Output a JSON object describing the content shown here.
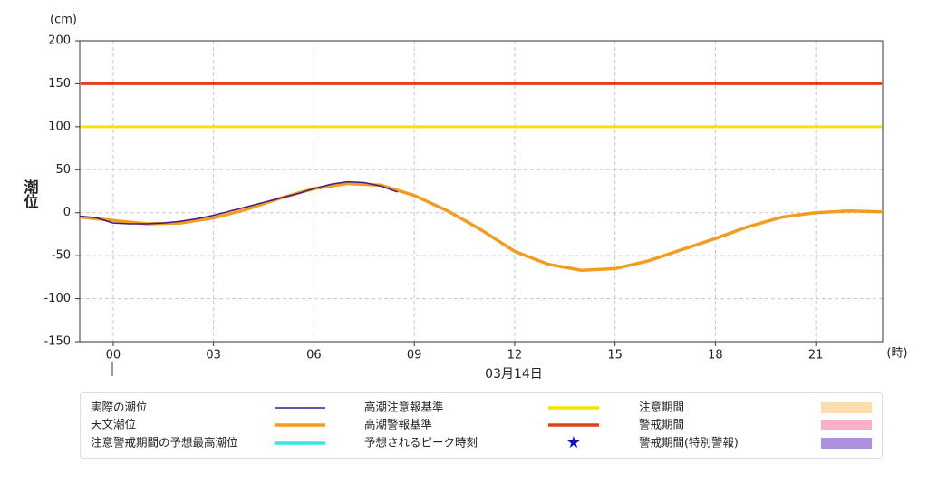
{
  "chart_data": {
    "type": "line",
    "y_unit": "(cm)",
    "ylabel": "潮位",
    "x_unit": "(時)",
    "date_label": "03月14日",
    "xlim": [
      -1,
      23
    ],
    "xticks": [
      {
        "value": 0,
        "label": "00"
      },
      {
        "value": 3,
        "label": "03"
      },
      {
        "value": 6,
        "label": "06"
      },
      {
        "value": 9,
        "label": "09"
      },
      12,
      15,
      18,
      21
    ],
    "ylim": [
      -150,
      200
    ],
    "yticks": [
      -150,
      -100,
      -50,
      0,
      50,
      100,
      150,
      200
    ],
    "grid": true,
    "series": [
      {
        "name": "実際の潮位",
        "color": "#3c1a8c",
        "x": [
          -1,
          -0.5,
          0,
          0.5,
          1,
          1.5,
          2,
          2.5,
          3,
          3.5,
          4,
          4.5,
          5,
          5.5,
          6,
          6.5,
          7,
          7.5,
          8,
          8.5
        ],
        "values": [
          -4,
          -6,
          -12,
          -13,
          -13,
          -12,
          -10,
          -7,
          -3,
          2,
          7,
          12,
          17,
          22,
          28,
          33,
          36,
          35,
          31,
          24
        ]
      },
      {
        "name": "天文潮位",
        "color": "#f39c1f",
        "x": [
          -1,
          0,
          1,
          2,
          3,
          4,
          5,
          6,
          7,
          8,
          9,
          10,
          11,
          12,
          13,
          14,
          15,
          16,
          17,
          18,
          19,
          20,
          21,
          22,
          23
        ],
        "values": [
          -5,
          -9,
          -13,
          -12,
          -6,
          4,
          17,
          28,
          34,
          32,
          20,
          2,
          -20,
          -45,
          -60,
          -67,
          -65,
          -56,
          -43,
          -30,
          -16,
          -5,
          0,
          2,
          1
        ]
      }
    ],
    "reference_lines": [
      {
        "name": "高潮注意報基準",
        "color": "#f2e600",
        "value": 100
      },
      {
        "name": "高潮警報基準",
        "color": "#e0401c",
        "value": 150
      }
    ],
    "legend_only": [
      {
        "name": "注意警戒期間の予想最高潮位",
        "color": "#33e6e6",
        "style": "line"
      },
      {
        "name": "予想されるピーク時刻",
        "color": "#1010d0",
        "style": "star"
      },
      {
        "name": "注意期間",
        "color": "#fddcb0",
        "style": "box"
      },
      {
        "name": "警戒期間",
        "color": "#fbb0c8",
        "style": "box"
      },
      {
        "name": "警戒期間(特別警報)",
        "color": "#b090e0",
        "style": "box"
      }
    ]
  }
}
